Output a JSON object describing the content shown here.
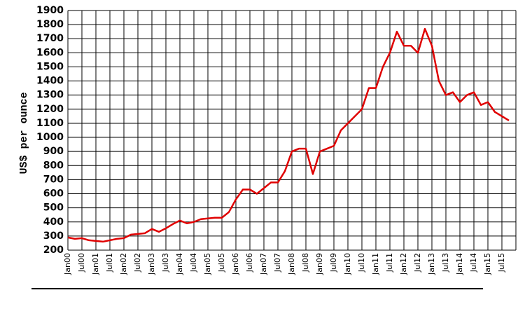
{
  "chart_data": {
    "type": "line",
    "y_label": "US$ per ounce",
    "categories": [
      "Jan00",
      null,
      "Jul00",
      null,
      "Jan01",
      null,
      "Jul01",
      null,
      "Jan02",
      null,
      "Jul02",
      null,
      "Jan03",
      null,
      "Jul03",
      null,
      "Jan04",
      null,
      "Jul04",
      null,
      "Jan05",
      null,
      "Jul05",
      null,
      "Jan06",
      null,
      "Jul06",
      null,
      "Jan07",
      null,
      "Jul07",
      null,
      "Jan08",
      null,
      "Jul08",
      null,
      "Jan09",
      null,
      "Jul09",
      null,
      "Jan10",
      null,
      "Jul10",
      null,
      "Jan11",
      null,
      "Jul11",
      null,
      "Jan12",
      null,
      "Jul12",
      null,
      "Jan13",
      null,
      "Jul13",
      null,
      "Jan14",
      null,
      "Jul14",
      null,
      "Jan15",
      null,
      "Jul15",
      null
    ],
    "series": [
      {
        "color": "#e00000",
        "values": [
          290,
          280,
          285,
          270,
          265,
          260,
          270,
          280,
          285,
          310,
          315,
          320,
          350,
          330,
          355,
          385,
          410,
          390,
          400,
          420,
          425,
          430,
          430,
          470,
          560,
          630,
          630,
          600,
          640,
          680,
          680,
          760,
          900,
          920,
          920,
          740,
          900,
          920,
          940,
          1050,
          1100,
          1150,
          1200,
          1350,
          1350,
          1500,
          1600,
          1750,
          1650,
          1650,
          1600,
          1770,
          1650,
          1400,
          1300,
          1320,
          1250,
          1300,
          1320,
          1230,
          1250,
          1180,
          1150,
          1120
        ]
      }
    ],
    "ylim": [
      200,
      1900
    ],
    "yticks": [
      200,
      300,
      400,
      500,
      600,
      700,
      800,
      900,
      1000,
      1100,
      1200,
      1300,
      1400,
      1500,
      1600,
      1700,
      1800,
      1900
    ],
    "grid": true
  }
}
